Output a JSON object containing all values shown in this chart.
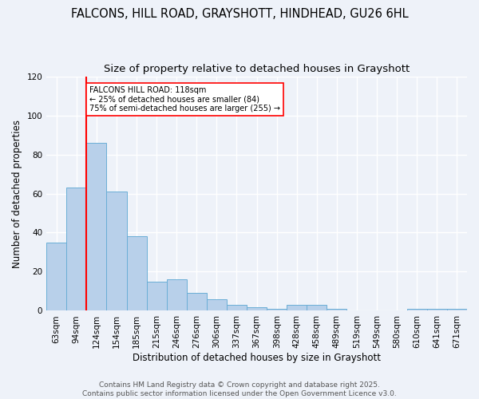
{
  "title_line1": "FALCONS, HILL ROAD, GRAYSHOTT, HINDHEAD, GU26 6HL",
  "title_line2": "Size of property relative to detached houses in Grayshott",
  "xlabel": "Distribution of detached houses by size in Grayshott",
  "ylabel": "Number of detached properties",
  "bin_labels": [
    "63sqm",
    "94sqm",
    "124sqm",
    "154sqm",
    "185sqm",
    "215sqm",
    "246sqm",
    "276sqm",
    "306sqm",
    "337sqm",
    "367sqm",
    "398sqm",
    "428sqm",
    "458sqm",
    "489sqm",
    "519sqm",
    "549sqm",
    "580sqm",
    "610sqm",
    "641sqm",
    "671sqm"
  ],
  "bar_values": [
    35,
    63,
    86,
    61,
    38,
    15,
    16,
    9,
    6,
    3,
    2,
    1,
    3,
    3,
    1,
    0,
    0,
    0,
    1,
    1,
    1
  ],
  "bar_color": "#b8d0ea",
  "bar_edge_color": "#6aaed6",
  "red_line_label": "FALCONS HILL ROAD: 118sqm",
  "annotation_line2": "← 25% of detached houses are smaller (84)",
  "annotation_line3": "75% of semi-detached houses are larger (255) →",
  "ylim": [
    0,
    120
  ],
  "yticks": [
    0,
    20,
    40,
    60,
    80,
    100,
    120
  ],
  "footer_line1": "Contains HM Land Registry data © Crown copyright and database right 2025.",
  "footer_line2": "Contains public sector information licensed under the Open Government Licence v3.0.",
  "bg_color": "#eef2f9",
  "plot_bg_color": "#eef2f9",
  "grid_color": "white",
  "title_fontsize": 10.5,
  "subtitle_fontsize": 9.5,
  "axis_label_fontsize": 8.5,
  "tick_fontsize": 7.5,
  "footer_fontsize": 6.5
}
